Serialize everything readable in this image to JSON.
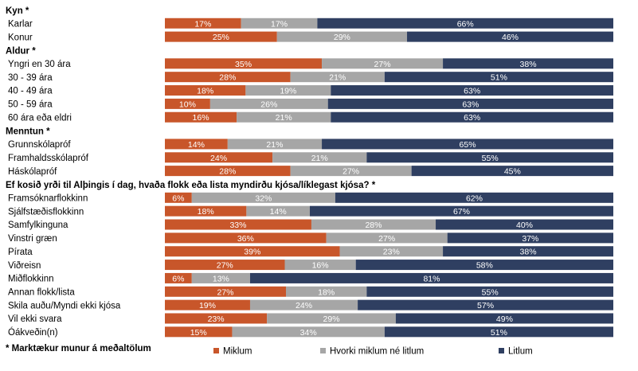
{
  "chart_data": {
    "type": "bar",
    "stacked": true,
    "orientation": "horizontal",
    "xlim": [
      0,
      100
    ],
    "unit": "%",
    "series_names": [
      "Miklum",
      "Hvorki miklum né litlum",
      "Litlum"
    ],
    "colors": [
      "#c8562a",
      "#a6a6a6",
      "#2f3f61"
    ],
    "groups": [
      {
        "title": "Kyn *",
        "rows": [
          {
            "label": "Karlar",
            "values": [
              17,
              17,
              66
            ]
          },
          {
            "label": "Konur",
            "values": [
              25,
              29,
              46
            ]
          }
        ]
      },
      {
        "title": "Aldur *",
        "rows": [
          {
            "label": "Yngri en 30 ára",
            "values": [
              35,
              27,
              38
            ]
          },
          {
            "label": "30 - 39 ára",
            "values": [
              28,
              21,
              51
            ]
          },
          {
            "label": "40 - 49 ára",
            "values": [
              18,
              19,
              63
            ]
          },
          {
            "label": "50 - 59 ára",
            "values": [
              10,
              26,
              63
            ]
          },
          {
            "label": "60 ára eða eldri",
            "values": [
              16,
              21,
              63
            ]
          }
        ]
      },
      {
        "title": "Menntun *",
        "rows": [
          {
            "label": "Grunnskólapróf",
            "values": [
              14,
              21,
              65
            ]
          },
          {
            "label": "Framhaldsskólapróf",
            "values": [
              24,
              21,
              55
            ]
          },
          {
            "label": "Háskólapróf",
            "values": [
              28,
              27,
              45
            ]
          }
        ]
      },
      {
        "title": "Ef kosið yrði til Alþingis í dag, hvaða flokk eða lista myndirðu kjósa/líklegast kjósa? *",
        "rows": [
          {
            "label": "Framsóknarflokkinn",
            "values": [
              6,
              32,
              62
            ]
          },
          {
            "label": "Sjálfstæðisflokkinn",
            "values": [
              18,
              14,
              67
            ]
          },
          {
            "label": "Samfylkinguna",
            "values": [
              33,
              28,
              40
            ]
          },
          {
            "label": "Vinstri græn",
            "values": [
              36,
              27,
              37
            ]
          },
          {
            "label": "Pírata",
            "values": [
              39,
              23,
              38
            ]
          },
          {
            "label": "Viðreisn",
            "values": [
              27,
              16,
              58
            ]
          },
          {
            "label": "Miðflokkinn",
            "values": [
              6,
              13,
              81
            ]
          },
          {
            "label": "Annan flokk/lista",
            "values": [
              27,
              18,
              55
            ]
          },
          {
            "label": "Skila auðu/Myndi ekki kjósa",
            "values": [
              19,
              24,
              57
            ]
          },
          {
            "label": "Vil ekki svara",
            "values": [
              23,
              29,
              49
            ]
          },
          {
            "label": "Óákveðin(n)",
            "values": [
              15,
              34,
              51
            ]
          }
        ]
      }
    ],
    "footnote": "* Marktækur munur á meðaltölum",
    "legend": [
      {
        "label": "Miklum",
        "color": "#c8562a"
      },
      {
        "label": "Hvorki miklum né litlum",
        "color": "#a6a6a6"
      },
      {
        "label": "Litlum",
        "color": "#2f3f61"
      }
    ],
    "legend_position": "bottom"
  }
}
